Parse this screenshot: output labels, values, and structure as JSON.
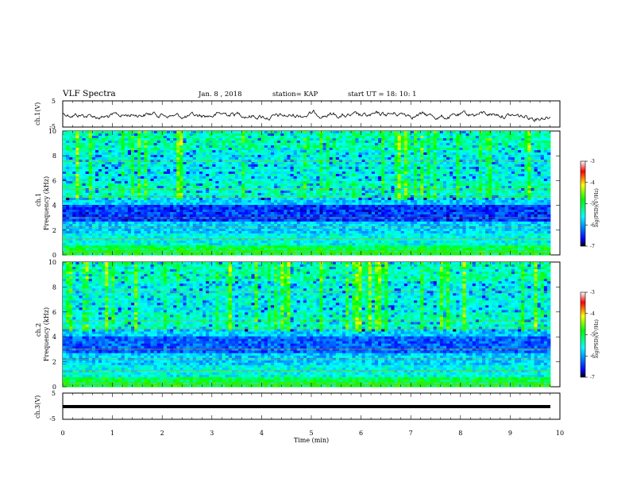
{
  "header": {
    "title": "VLF Spectra",
    "date": "Jan. 8 , 2018",
    "station": "station= KAP",
    "start_ut": "start UT = 18: 10: 1"
  },
  "chart_data": [
    {
      "type": "line",
      "panel": "ch1-waveform",
      "ylabel": "ch.1(V)",
      "ylim": [
        -5,
        5
      ],
      "yticks": [
        "5",
        "-5"
      ],
      "xlim": [
        0,
        10
      ],
      "series": [
        {
          "values_note": "noisy waveform around -0.5 V",
          "mean": -0.5,
          "range": [
            -2,
            1.5
          ]
        }
      ]
    },
    {
      "type": "heatmap",
      "panel": "ch1-spectrogram",
      "ylabel_line1": "ch.1",
      "ylabel_line2": "Frequency (kHz)",
      "ylim": [
        0,
        10
      ],
      "yticks": [
        "0",
        "2",
        "4",
        "6",
        "8",
        "10"
      ],
      "xlim": [
        0,
        9.85
      ],
      "colorbar": {
        "label": "log(PSD)(V²/Hz)",
        "range": [
          -7,
          -3
        ],
        "ticks": [
          "-3",
          "-4",
          "-5",
          "-6",
          "-7"
        ],
        "colors": [
          "#000000",
          "#0000ff",
          "#00ffff",
          "#00ff00",
          "#ffff00",
          "#ff0000",
          "#ffffff"
        ]
      }
    },
    {
      "type": "heatmap",
      "panel": "ch2-spectrogram",
      "ylabel_line1": "ch.2",
      "ylabel_line2": "Frequency (kHz)",
      "ylim": [
        0,
        10
      ],
      "yticks": [
        "0",
        "2",
        "4",
        "6",
        "8",
        "10"
      ],
      "xlim": [
        0,
        9.85
      ],
      "colorbar": {
        "label": "log(PSD)(V²/Hz)",
        "range": [
          -7,
          -3
        ],
        "ticks": [
          "-3",
          "-4",
          "-5",
          "-6",
          "-7"
        ]
      }
    },
    {
      "type": "line",
      "panel": "ch3-waveform",
      "ylabel": "ch.3(V)",
      "ylim": [
        -5,
        5
      ],
      "yticks": [
        "5",
        "-5"
      ],
      "xlim": [
        0,
        10
      ],
      "series": [
        {
          "values_note": "flat line",
          "mean": -2,
          "range": [
            -2,
            -2
          ]
        }
      ],
      "xlabel": "Time (min)",
      "xticks": [
        "0",
        "1",
        "2",
        "3",
        "4",
        "5",
        "6",
        "7",
        "8",
        "9",
        "10"
      ]
    }
  ]
}
